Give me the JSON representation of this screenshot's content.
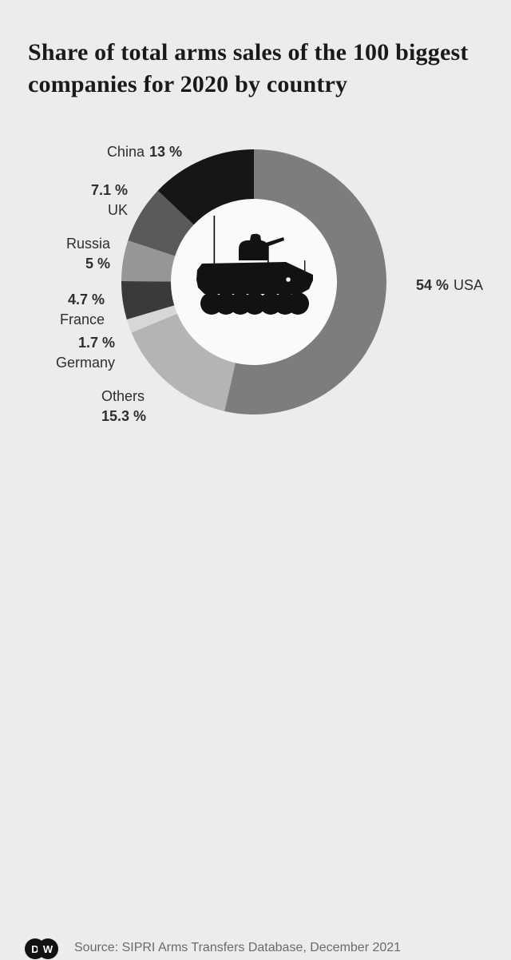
{
  "title": "Share of total arms sales of the 100 biggest companies for 2020 by country",
  "colors": {
    "background": "#ececec",
    "donut_hole": "#fafafa",
    "title_text": "#1a1a1a",
    "label_text": "#2e2e2e",
    "source_text": "#6b6b6b",
    "logo": "#121212",
    "vehicle_silhouette": "#121212"
  },
  "chart_data": {
    "type": "pie",
    "subtype": "donut",
    "title": "Share of total arms sales of the 100 biggest companies for 2020 by country",
    "unit": "%",
    "start": "top",
    "direction": "clockwise",
    "legend_position": "around-callouts",
    "center_icon": "armored-vehicle-icon",
    "series": [
      {
        "label": "USA",
        "value": 54,
        "display": "54 %",
        "color": "#7d7d7d"
      },
      {
        "label": "Others",
        "value": 15.3,
        "display": "15.3 %",
        "color": "#b4b4b4"
      },
      {
        "label": "Germany",
        "value": 1.7,
        "display": "1.7 %",
        "color": "#d7d7d7"
      },
      {
        "label": "France",
        "value": 4.7,
        "display": "4.7 %",
        "color": "#3a3a3a"
      },
      {
        "label": "Russia",
        "value": 5,
        "display": "5 %",
        "color": "#969696"
      },
      {
        "label": "UK",
        "value": 7.1,
        "display": "7.1 %",
        "color": "#5a5a5a"
      },
      {
        "label": "China",
        "value": 13,
        "display": "13 %",
        "color": "#161616"
      }
    ]
  },
  "footer": {
    "source": "Source: SIPRI Arms Transfers Database, December 2021",
    "logo_left_letter": "D",
    "logo_right_letter": "W"
  }
}
